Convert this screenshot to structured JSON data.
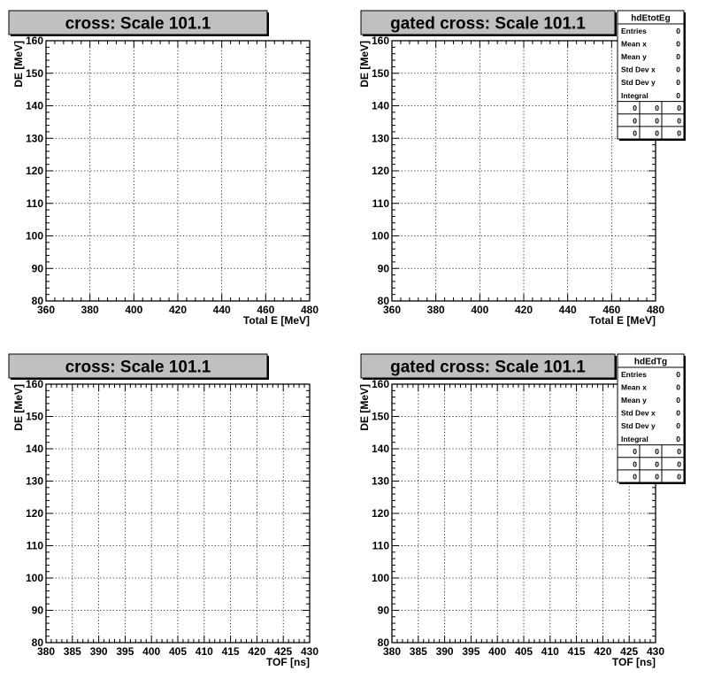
{
  "chart_data": [
    {
      "type": "heatmap",
      "title": "cross: Scale 101.1",
      "xlabel": "Total E [MeV]",
      "ylabel": "DE [MeV]",
      "xlim": [
        360,
        480
      ],
      "ylim": [
        80,
        160
      ],
      "xticks": [
        360,
        380,
        400,
        420,
        440,
        460,
        480
      ],
      "yticks": [
        80,
        90,
        100,
        110,
        120,
        130,
        140,
        150,
        160
      ],
      "grid": true,
      "values": [],
      "stats": null
    },
    {
      "type": "heatmap",
      "title": "gated cross: Scale 101.1",
      "xlabel": "Total E [MeV]",
      "ylabel": "DE [MeV]",
      "xlim": [
        360,
        480
      ],
      "ylim": [
        80,
        160
      ],
      "xticks": [
        360,
        380,
        400,
        420,
        440,
        460,
        480
      ],
      "yticks": [
        80,
        90,
        100,
        110,
        120,
        130,
        140,
        150,
        160
      ],
      "grid": true,
      "values": [],
      "stats": {
        "name": "hdEtotEg",
        "rows": [
          {
            "label": "Entries",
            "value": "0"
          },
          {
            "label": "Mean x",
            "value": "0"
          },
          {
            "label": "Mean y",
            "value": "0"
          },
          {
            "label": "Std Dev x",
            "value": "0"
          },
          {
            "label": "Std Dev y",
            "value": "0"
          },
          {
            "label": "Integral",
            "value": "0"
          }
        ],
        "grid": [
          [
            "0",
            "0",
            "0"
          ],
          [
            "0",
            "0",
            "0"
          ],
          [
            "0",
            "0",
            "0"
          ]
        ]
      }
    },
    {
      "type": "heatmap",
      "title": "cross: Scale 101.1",
      "xlabel": "TOF [ns]",
      "ylabel": "DE [MeV]",
      "xlim": [
        380,
        430
      ],
      "ylim": [
        80,
        160
      ],
      "xticks": [
        380,
        385,
        390,
        395,
        400,
        405,
        410,
        415,
        420,
        425,
        430
      ],
      "yticks": [
        80,
        90,
        100,
        110,
        120,
        130,
        140,
        150,
        160
      ],
      "grid": true,
      "values": [],
      "stats": null
    },
    {
      "type": "heatmap",
      "title": "gated cross: Scale 101.1",
      "xlabel": "TOF [ns]",
      "ylabel": "DE [MeV]",
      "xlim": [
        380,
        430
      ],
      "ylim": [
        80,
        160
      ],
      "xticks": [
        380,
        385,
        390,
        395,
        400,
        405,
        410,
        415,
        420,
        425,
        430
      ],
      "yticks": [
        80,
        90,
        100,
        110,
        120,
        130,
        140,
        150,
        160
      ],
      "grid": true,
      "values": [],
      "stats": {
        "name": "hdEdTg",
        "rows": [
          {
            "label": "Entries",
            "value": "0"
          },
          {
            "label": "Mean x",
            "value": "0"
          },
          {
            "label": "Mean y",
            "value": "0"
          },
          {
            "label": "Std Dev x",
            "value": "0"
          },
          {
            "label": "Std Dev y",
            "value": "0"
          },
          {
            "label": "Integral",
            "value": "0"
          }
        ],
        "grid": [
          [
            "0",
            "0",
            "0"
          ],
          [
            "0",
            "0",
            "0"
          ],
          [
            "0",
            "0",
            "0"
          ]
        ]
      }
    }
  ],
  "colors": {
    "title_box": "#c0c0c0",
    "frame": "#000000",
    "grid": "#000000",
    "background": "#ffffff"
  }
}
